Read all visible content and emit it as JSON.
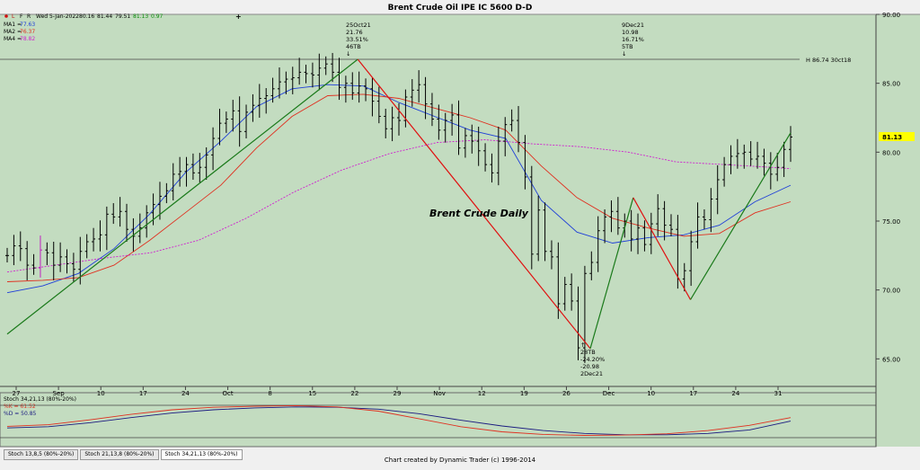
{
  "window": {
    "title": "Brent Crude Oil IPE IC 5600 D-D",
    "toolbar_icons": [
      "red-dot-icon",
      "L",
      "F",
      "R",
      "plus-icon"
    ],
    "quote": {
      "date": "Wed 5-Jan-2022",
      "open": "80.16",
      "high": "81.44",
      "low": "79.51",
      "close": "81.13",
      "change": "0.97"
    }
  },
  "legend": [
    {
      "label": "MA1",
      "value": "77.63",
      "color": "#1f3fd8"
    },
    {
      "label": "MA2",
      "value": "76.37",
      "color": "#e03020"
    },
    {
      "label": "MA4",
      "value": "78.82",
      "color": "#d020d0"
    }
  ],
  "chart_data": {
    "type": "line",
    "title": "Brent Crude Oil IPE IC 5600 D-D",
    "watermark": "Brent Crude Daily",
    "ylim": [
      63,
      90
    ],
    "yticks": [
      "90.00",
      "85.00",
      "80.00",
      "75.00",
      "70.00",
      "65.00"
    ],
    "last_price_label": "81.13",
    "last_price_color": "#ffff00",
    "high_line": {
      "value": 86.74,
      "label": "H 86.74 30ct18"
    },
    "xtick_labels": [
      "27",
      "Sep",
      "10",
      "17",
      "24",
      "Oct",
      "8",
      "15",
      "22",
      "29",
      "Nov",
      "12",
      "19",
      "26",
      "Dec",
      "10",
      "17",
      "24",
      "31"
    ],
    "bars_close": [
      72.5,
      73.2,
      73.0,
      71.8,
      71.6,
      72.9,
      72.7,
      71.8,
      72.4,
      71.9,
      71.5,
      72.8,
      73.5,
      73.7,
      74.0,
      75.5,
      75.3,
      75.7,
      74.4,
      73.9,
      74.5,
      75.6,
      76.2,
      76.8,
      77.2,
      78.4,
      78.6,
      79.1,
      78.5,
      78.9,
      79.8,
      81.0,
      82.1,
      82.4,
      83.0,
      81.5,
      82.9,
      83.4,
      83.9,
      84.1,
      84.6,
      85.1,
      85.3,
      85.4,
      85.8,
      85.7,
      85.6,
      86.1,
      86.4,
      85.8,
      84.7,
      85.0,
      84.3,
      84.8,
      84.6,
      83.7,
      82.6,
      81.7,
      82.5,
      82.3,
      84.0,
      84.5,
      84.9,
      83.5,
      82.4,
      81.6,
      82.3,
      82.7,
      80.3,
      81.2,
      80.8,
      80.1,
      79.1,
      78.5,
      80.8,
      82.0,
      82.3,
      80.7,
      78.2,
      72.6,
      75.8,
      72.8,
      72.4,
      69.0,
      70.4,
      69.2,
      65.8,
      71.2,
      72.0,
      74.3,
      75.3,
      75.7,
      74.5,
      75.0,
      73.7,
      74.5,
      73.3,
      74.8,
      75.9,
      74.7,
      74.4,
      70.8,
      71.4,
      73.5,
      75.3,
      75.1,
      76.6,
      78.0,
      79.1,
      79.7,
      79.9,
      80.0,
      79.5,
      79.7,
      79.2,
      78.4,
      78.9,
      80.2,
      81.1
    ],
    "ma_series": [
      {
        "name": "MA1",
        "color": "#1f3fd8",
        "points": [
          [
            0,
            69.8
          ],
          [
            10,
            70.3
          ],
          [
            20,
            71.2
          ],
          [
            30,
            73.0
          ],
          [
            40,
            75.5
          ],
          [
            50,
            78.5
          ],
          [
            60,
            80.8
          ],
          [
            70,
            83.3
          ],
          [
            80,
            84.6
          ],
          [
            90,
            84.9
          ],
          [
            100,
            84.8
          ],
          [
            110,
            83.6
          ],
          [
            120,
            82.6
          ],
          [
            130,
            81.6
          ],
          [
            140,
            81.0
          ],
          [
            150,
            76.5
          ],
          [
            160,
            74.2
          ],
          [
            170,
            73.4
          ],
          [
            180,
            73.8
          ],
          [
            190,
            74.0
          ],
          [
            200,
            74.7
          ],
          [
            210,
            76.4
          ],
          [
            220,
            77.6
          ]
        ]
      },
      {
        "name": "MA2",
        "color": "#e03020",
        "points": [
          [
            0,
            70.6
          ],
          [
            10,
            70.7
          ],
          [
            20,
            70.9
          ],
          [
            30,
            71.8
          ],
          [
            40,
            73.6
          ],
          [
            50,
            75.6
          ],
          [
            60,
            77.6
          ],
          [
            70,
            80.3
          ],
          [
            80,
            82.6
          ],
          [
            90,
            84.1
          ],
          [
            100,
            84.2
          ],
          [
            110,
            83.9
          ],
          [
            120,
            83.2
          ],
          [
            130,
            82.5
          ],
          [
            140,
            81.6
          ],
          [
            150,
            79.0
          ],
          [
            160,
            76.7
          ],
          [
            170,
            75.2
          ],
          [
            180,
            74.5
          ],
          [
            190,
            73.9
          ],
          [
            200,
            74.1
          ],
          [
            210,
            75.6
          ],
          [
            220,
            76.4
          ]
        ]
      },
      {
        "name": "MA4",
        "color": "#d020d0",
        "points": [
          [
            0,
            71.3
          ],
          [
            20,
            71.8
          ],
          [
            40,
            72.3
          ],
          [
            60,
            72.7
          ],
          [
            80,
            73.6
          ],
          [
            100,
            75.2
          ],
          [
            120,
            77.1
          ],
          [
            140,
            78.7
          ],
          [
            160,
            79.9
          ],
          [
            180,
            80.7
          ],
          [
            200,
            80.9
          ],
          [
            220,
            80.6
          ],
          [
            240,
            80.4
          ],
          [
            260,
            80.0
          ],
          [
            280,
            79.3
          ],
          [
            300,
            79.1
          ],
          [
            320,
            78.9
          ],
          [
            328,
            78.8
          ]
        ]
      }
    ],
    "wave_lines": [
      {
        "color": "#1a7a1a",
        "from": [
          0,
          66.8
        ],
        "to": [
          98,
          86.74
        ]
      },
      {
        "color": "#e01010",
        "from": [
          98,
          86.74
        ],
        "to": [
          163,
          65.75
        ]
      },
      {
        "color": "#1a7a1a",
        "from": [
          163,
          65.75
        ],
        "to": [
          175,
          76.7
        ]
      },
      {
        "color": "#e01010",
        "from": [
          175,
          76.7
        ],
        "to": [
          191,
          69.3
        ]
      },
      {
        "color": "#1a7a1a",
        "from": [
          191,
          69.3
        ],
        "to": [
          219,
          81.4
        ]
      }
    ],
    "annotations": [
      {
        "lines": [
          "25Oct21",
          "21.76",
          "33.51%",
          "46TB",
          "↓"
        ]
      },
      {
        "lines": [
          "9Dec21",
          "10.98",
          "16.71%",
          "5TB",
          "↓"
        ]
      },
      {
        "lines": [
          "↑",
          "28TB",
          "-24.20%",
          "-20.98",
          "2Dec21"
        ]
      }
    ]
  },
  "stoch": {
    "title": "Stoch 34,21,13 (80%-20%)",
    "k_label": "%K = 61.52",
    "d_label": "%D = 50.85",
    "k_color": "#e03020",
    "d_color": "#1a1a80",
    "k": [
      0.35,
      0.4,
      0.55,
      0.72,
      0.86,
      0.94,
      0.97,
      0.99,
      0.95,
      0.82,
      0.58,
      0.34,
      0.18,
      0.1,
      0.07,
      0.08,
      0.12,
      0.22,
      0.38,
      0.62
    ],
    "d": [
      0.3,
      0.34,
      0.46,
      0.62,
      0.76,
      0.86,
      0.92,
      0.95,
      0.94,
      0.88,
      0.74,
      0.54,
      0.36,
      0.22,
      0.13,
      0.09,
      0.09,
      0.13,
      0.24,
      0.51
    ]
  },
  "bottom_tabs": [
    "Stoch 13,8,5 (80%-20%)",
    "Stoch 21,13,8 (80%-20%)",
    "Stoch 34,21,13 (80%-20%)"
  ],
  "footer": "Chart created by Dynamic Trader  (c) 1996-2014"
}
